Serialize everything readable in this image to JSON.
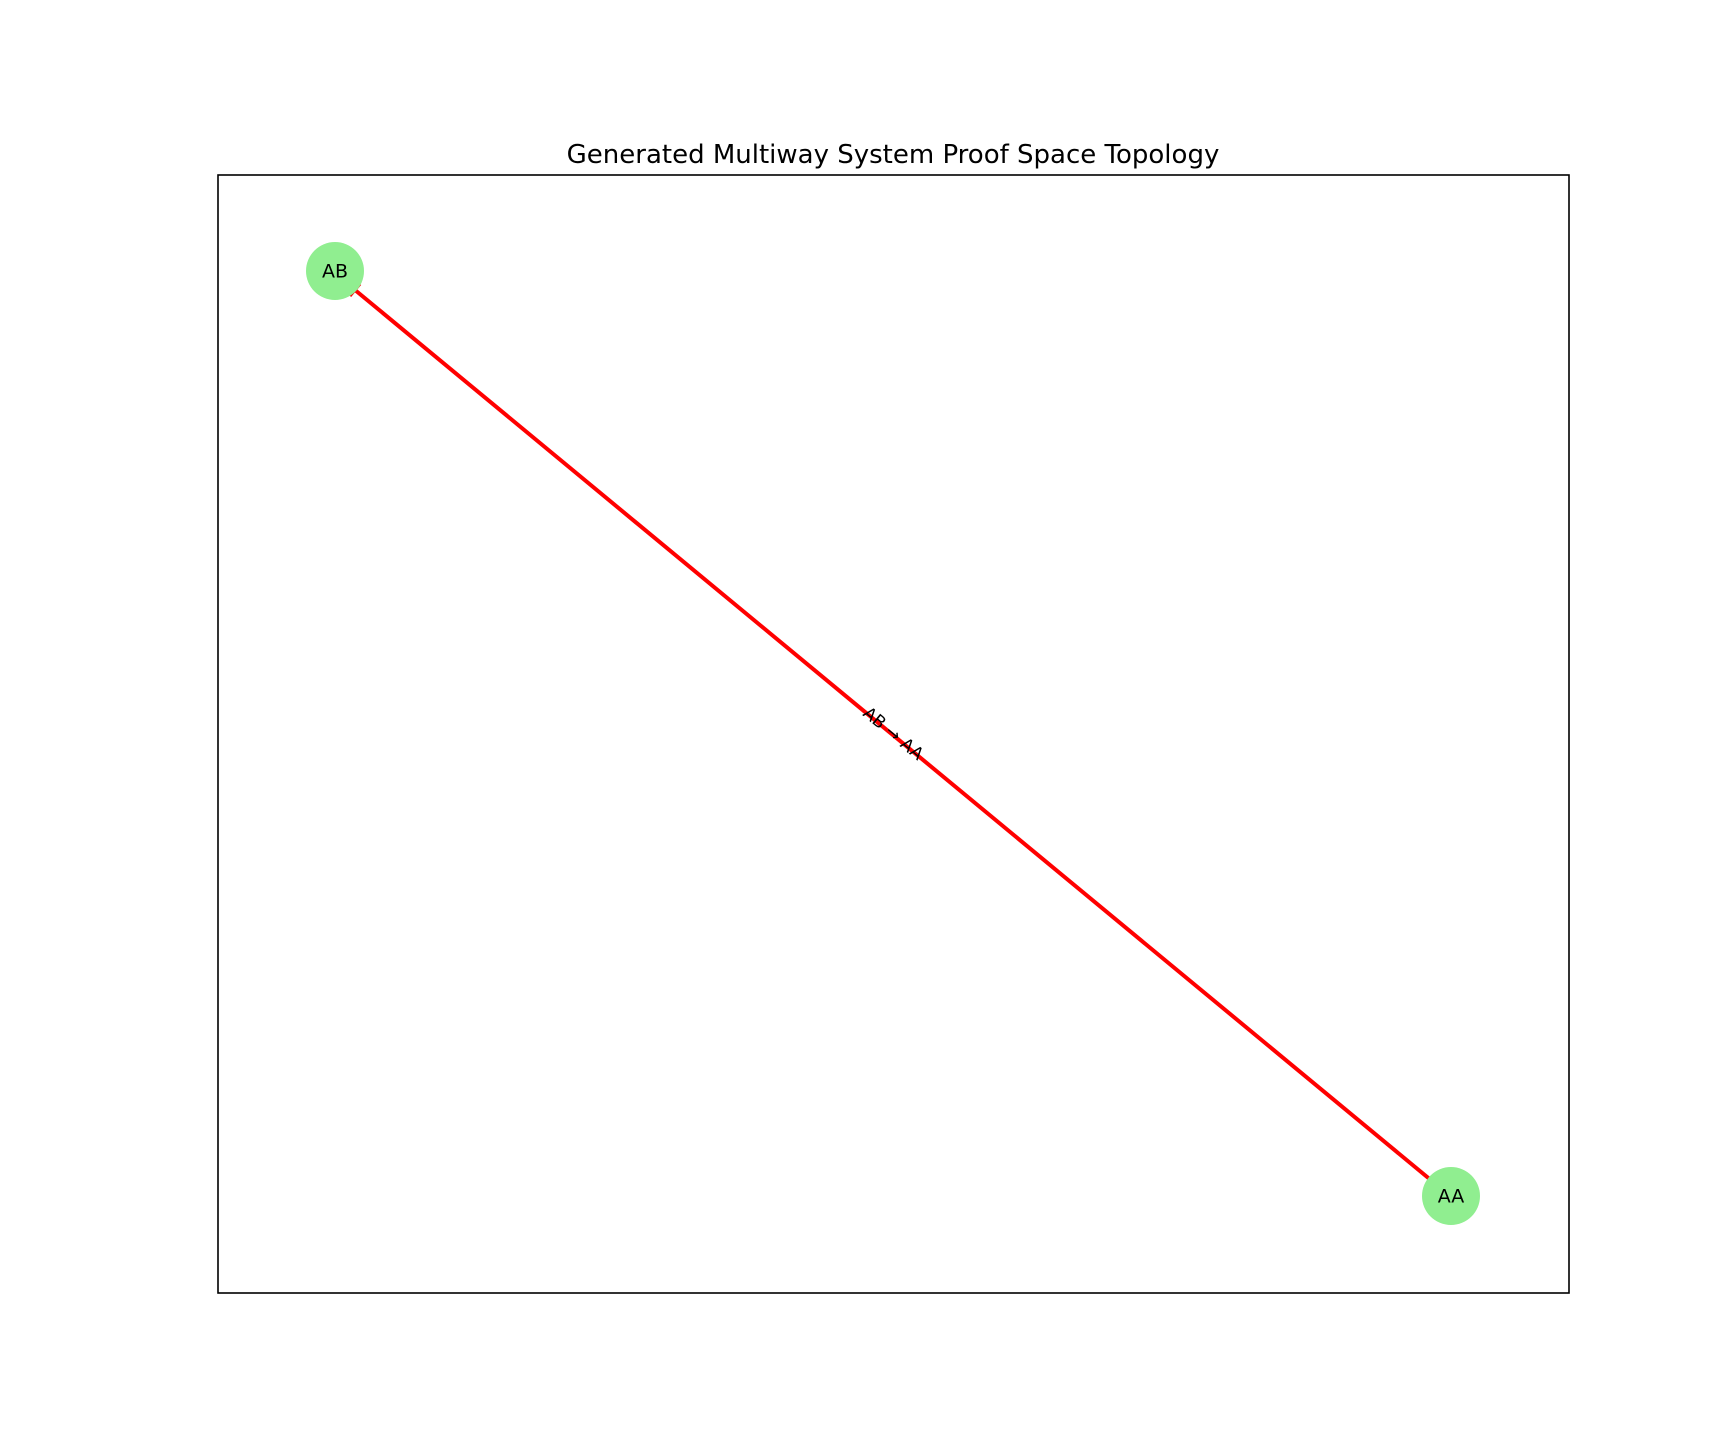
{
  "title": "Generated Multiway System Proof Space Topology",
  "nodes": [
    {
      "id": "AB",
      "label": "AB"
    },
    {
      "id": "AA",
      "label": "AA"
    }
  ],
  "edges": [
    {
      "from": "AB",
      "to": "AA",
      "label": "AB → AA"
    }
  ],
  "colors": {
    "node_fill": "#90ee90",
    "edge": "#ff0000",
    "frame": "#000000",
    "background": "#ffffff"
  }
}
